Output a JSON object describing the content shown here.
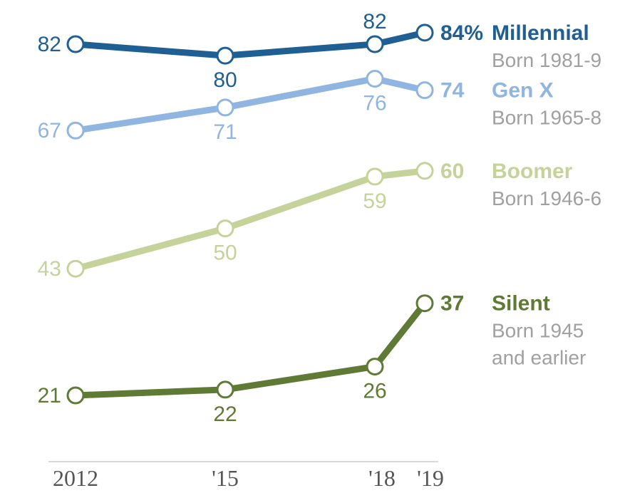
{
  "chart_data": {
    "type": "line",
    "x": [
      "2012",
      "'15",
      "'18",
      "'19"
    ],
    "x_values": [
      2012,
      2015,
      2018,
      2019
    ],
    "ylim": [
      15,
      90
    ],
    "grid": false,
    "legend": "direct-labels-right",
    "series": [
      {
        "name": "Millennial",
        "sub_lines": [
          "Born 1981-9"
        ],
        "end_label": "84%",
        "values": [
          82,
          80,
          82,
          84
        ],
        "value_labels": [
          "82",
          "80",
          "82"
        ],
        "color": "#1f5f93"
      },
      {
        "name": "Gen X",
        "sub_lines": [
          "Born 1965-8"
        ],
        "end_label": "74",
        "values": [
          67,
          71,
          76,
          74
        ],
        "value_labels": [
          "67",
          "71",
          "76"
        ],
        "color": "#8fb5e0"
      },
      {
        "name": "Boomer",
        "sub_lines": [
          "Born 1946-6"
        ],
        "end_label": "60",
        "values": [
          43,
          50,
          59,
          60
        ],
        "value_labels": [
          "43",
          "50",
          "59"
        ],
        "color": "#c5d39a"
      },
      {
        "name": "Silent",
        "sub_lines": [
          "Born 1945",
          "and earlier"
        ],
        "end_label": "37",
        "values": [
          21,
          22,
          26,
          37
        ],
        "value_labels": [
          "21",
          "22",
          "26"
        ],
        "color": "#5f7a35"
      }
    ]
  }
}
